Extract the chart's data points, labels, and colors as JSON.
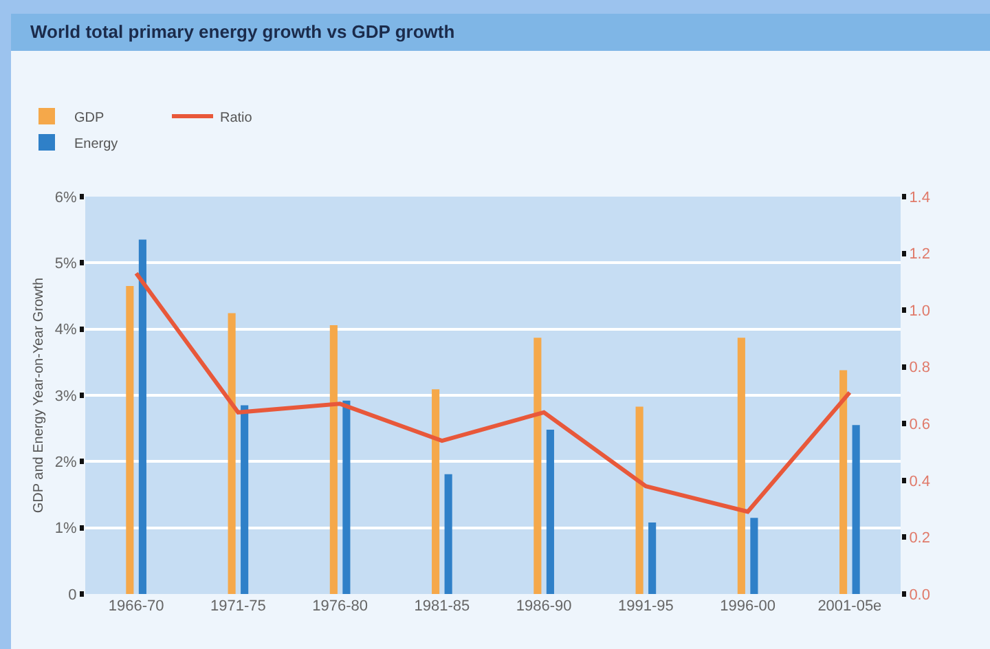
{
  "chart_data": {
    "type": "bar",
    "title": "World total primary energy growth vs GDP growth",
    "ylabel": "GDP and Energy Year-on-Year Growth",
    "categories": [
      "1966-70",
      "1971-75",
      "1976-80",
      "1981-85",
      "1986-90",
      "1991-95",
      "1996-00",
      "2001-05e"
    ],
    "series": [
      {
        "name": "GDP",
        "color": "#f5a84a",
        "values": [
          4.65,
          4.24,
          4.06,
          3.09,
          3.87,
          2.83,
          3.87,
          3.38
        ]
      },
      {
        "name": "Energy",
        "color": "#2f80c8",
        "values": [
          5.35,
          2.85,
          2.92,
          1.81,
          2.48,
          1.08,
          1.15,
          2.55
        ]
      },
      {
        "name": "Ratio",
        "type": "line",
        "axis": "y2",
        "color": "#e8583a",
        "values": [
          1.13,
          0.64,
          0.67,
          0.54,
          0.64,
          0.38,
          0.29,
          0.71
        ]
      }
    ],
    "ylim": [
      0,
      6
    ],
    "yticks": [
      0,
      {
        "value": 1,
        "label": "1%"
      },
      {
        "value": 2,
        "label": "2%"
      },
      {
        "value": 3,
        "label": "3%"
      },
      {
        "value": 4,
        "label": "4%"
      },
      {
        "value": 5,
        "label": "5%"
      },
      {
        "value": 6,
        "label": "6%"
      }
    ],
    "y2lim": [
      0,
      1.4
    ],
    "y2ticks": [
      {
        "value": 0,
        "label": "0.0"
      },
      0.2,
      0.4,
      0.6,
      0.8,
      {
        "value": 1,
        "label": "1.0"
      },
      1.2,
      1.4
    ],
    "grid": "y",
    "legend": "top left"
  }
}
